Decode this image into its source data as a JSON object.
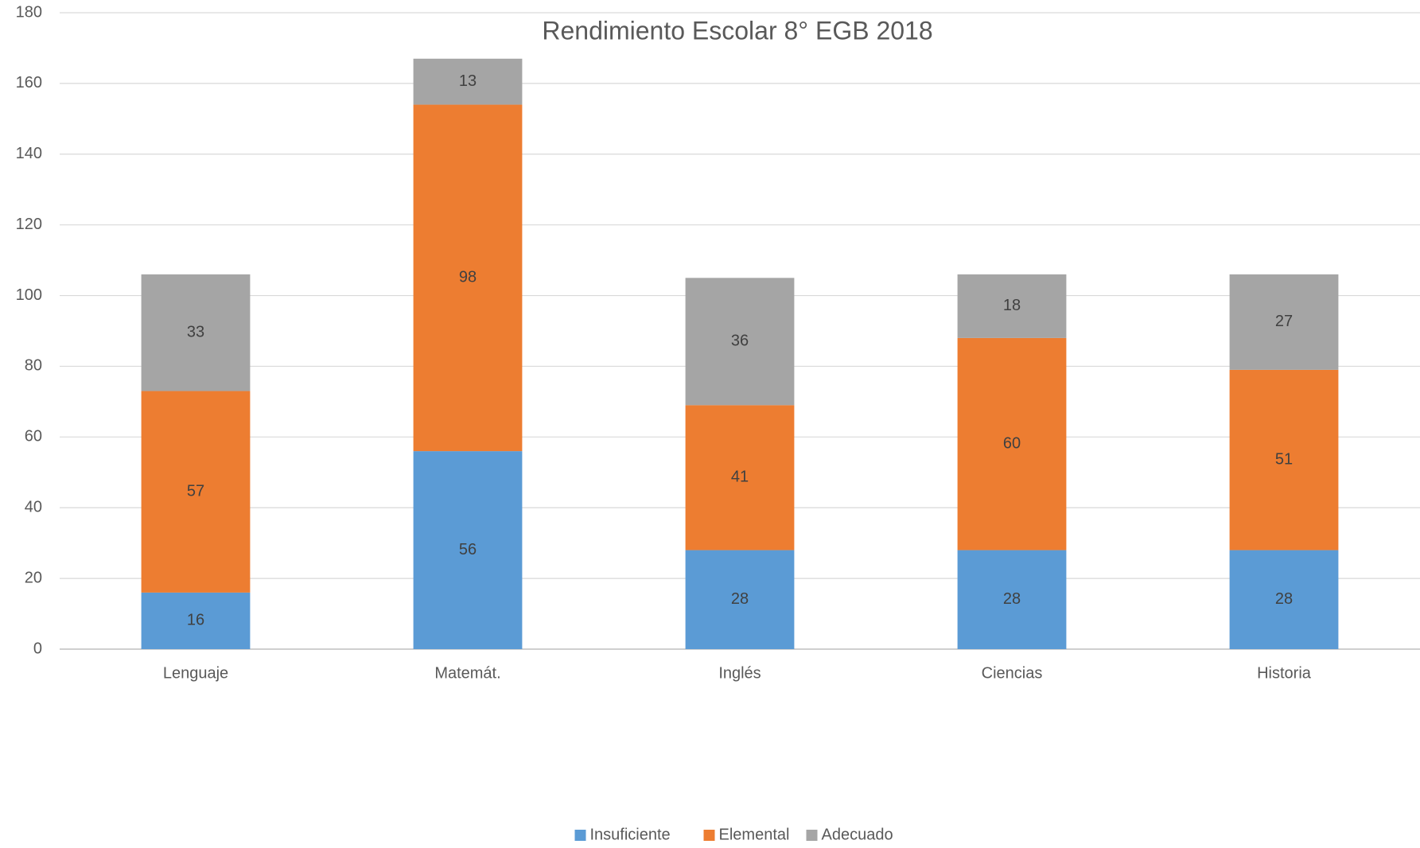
{
  "chart_data": {
    "type": "stacked_bar",
    "title": "Rendimiento Escolar 8° EGB 2018",
    "categories": [
      "Lenguaje",
      "Matemát.",
      "Inglés",
      "Ciencias",
      "Historia"
    ],
    "series": [
      {
        "name": "Insuficiente",
        "color": "#5b9bd5",
        "values": [
          16,
          56,
          28,
          28,
          28
        ]
      },
      {
        "name": "Elemental",
        "color": "#ed7d31",
        "values": [
          57,
          98,
          41,
          60,
          51
        ]
      },
      {
        "name": "Adecuado",
        "color": "#a5a5a5",
        "values": [
          33,
          13,
          36,
          18,
          27
        ]
      }
    ],
    "ylim": [
      0,
      180
    ],
    "yticks": [
      0,
      20,
      40,
      60,
      80,
      100,
      120,
      140,
      160,
      180
    ],
    "grid": true,
    "legend": "bottom"
  }
}
